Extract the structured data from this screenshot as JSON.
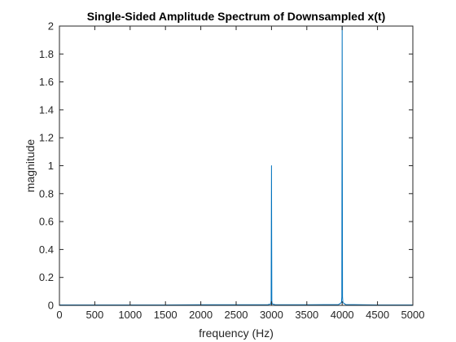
{
  "chart_data": {
    "type": "line",
    "title": "Single-Sided Amplitude Spectrum of Downsampled x(t)",
    "xlabel": "frequency (Hz)",
    "ylabel": "magnitude",
    "xlim": [
      0,
      5000
    ],
    "ylim": [
      0,
      2
    ],
    "xticks": [
      0,
      500,
      1000,
      1500,
      2000,
      2500,
      3000,
      3500,
      4000,
      4500,
      5000
    ],
    "xtick_labels": [
      "0",
      "500",
      "1000",
      "1500",
      "2000",
      "2500",
      "3000",
      "3500",
      "4000",
      "4500",
      "5000"
    ],
    "yticks": [
      0,
      0.2,
      0.4,
      0.6,
      0.8,
      1,
      1.2,
      1.4,
      1.6,
      1.8,
      2
    ],
    "ytick_labels": [
      "0",
      "0.2",
      "0.4",
      "0.6",
      "0.8",
      "1",
      "1.2",
      "1.4",
      "1.6",
      "1.8",
      "2"
    ],
    "grid": false,
    "box": true,
    "series": [
      {
        "color": "#0072bd",
        "x": [
          0,
          500,
          1000,
          1500,
          2000,
          2500,
          2950,
          2990,
          2995,
          3000,
          3005,
          3010,
          3050,
          3500,
          3950,
          3990,
          3995,
          4000,
          4005,
          4010,
          4050,
          4500,
          5000
        ],
        "y": [
          0.003,
          0.003,
          0.003,
          0.003,
          0.004,
          0.004,
          0.005,
          0.01,
          0.03,
          1.0,
          0.03,
          0.01,
          0.005,
          0.004,
          0.006,
          0.02,
          0.06,
          2.0,
          0.06,
          0.02,
          0.006,
          0.003,
          0.003
        ]
      }
    ]
  }
}
